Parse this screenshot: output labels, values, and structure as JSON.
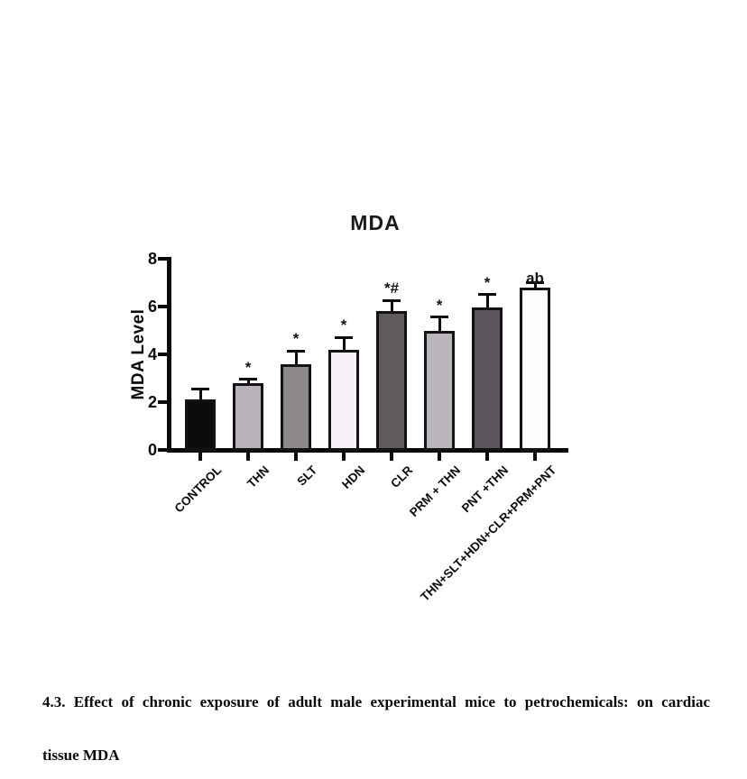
{
  "chart_data": {
    "type": "bar",
    "title": "MDA",
    "ylabel": "MDA Level",
    "xlabel": "",
    "ylim": [
      0,
      8
    ],
    "yticks": [
      0,
      2,
      4,
      6,
      8
    ],
    "grid": false,
    "legend_position": "none",
    "categories": [
      "CONTROL",
      "THN",
      "SLT",
      "HDN",
      "CLR",
      "PRM + THN",
      "PNT +THN",
      "THN+SLT+HDN+CLR+PRM+PNT"
    ],
    "values": [
      2.1,
      2.8,
      3.6,
      4.2,
      5.8,
      5.0,
      5.95,
      6.8
    ],
    "errors_plus": [
      0.45,
      0.15,
      0.55,
      0.5,
      0.45,
      0.55,
      0.55,
      0.2
    ],
    "significance_annotations": [
      "",
      "*",
      "*",
      "*",
      "*#",
      "*",
      "*",
      "ab"
    ],
    "bar_colors": [
      "#0c0b0c",
      "#b7b2ba",
      "#8d898d",
      "#f6f1f6",
      "#5e5a5e",
      "#bab5bc",
      "#59555a",
      "#fdfcfd"
    ],
    "bar_edge_color": "#141215",
    "axis_color": "#0a0a0a"
  },
  "caption": {
    "line1": "4.3. Effect of chronic exposure of adult male experimental mice to petrochemicals: on cardiac",
    "line2": "tissue MDA"
  }
}
